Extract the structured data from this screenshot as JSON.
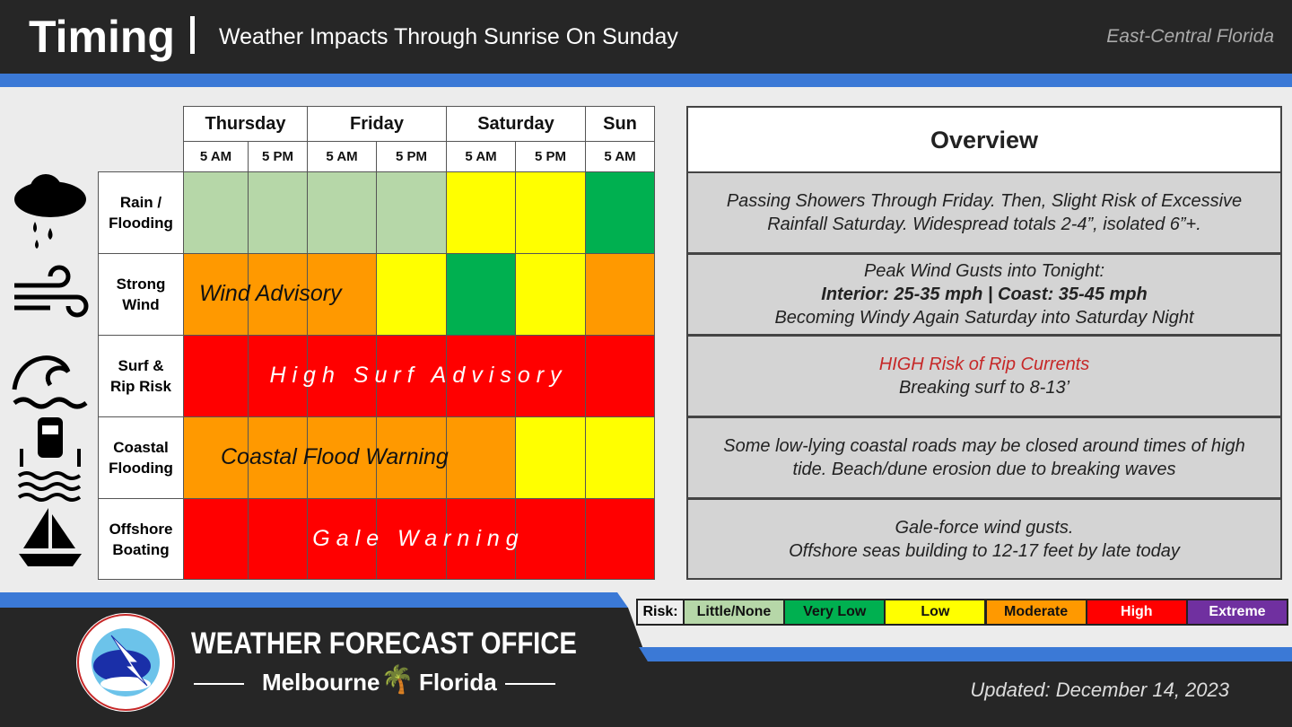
{
  "header": {
    "title": "Timing",
    "subtitle": "Weather Impacts Through Sunrise On Sunday",
    "region": "East-Central Florida"
  },
  "days": [
    {
      "label": "Thursday",
      "span": 2
    },
    {
      "label": "Friday",
      "span": 2
    },
    {
      "label": "Saturday",
      "span": 2
    },
    {
      "label": "Sun",
      "span": 1
    }
  ],
  "times": [
    "5 AM",
    "5 PM",
    "5 AM",
    "5 PM",
    "5 AM",
    "5 PM",
    "5 AM"
  ],
  "colors": {
    "little": "#b6d7a8",
    "verylow": "#00b050",
    "low": "#ffff00",
    "moderate": "#ff9900",
    "high": "#ff0000",
    "extreme": "#7030a0"
  },
  "rows": [
    {
      "label": "Rain / Flooding",
      "icon": "rain-cloud-icon",
      "risk": [
        "little",
        "little",
        "little",
        "little",
        "low",
        "low",
        "verylow"
      ],
      "overlay": "",
      "overview": [
        "Passing Showers Through Friday. Then, Slight Risk of Excessive",
        "Rainfall Saturday. Widespread totals 2-4”, isolated 6”+."
      ]
    },
    {
      "label": "Strong Wind",
      "icon": "wind-icon",
      "risk": [
        "moderate",
        "moderate",
        "moderate",
        "low",
        "verylow",
        "low",
        "moderate"
      ],
      "overlay": "Wind Advisory",
      "overview": [
        "Peak Wind Gusts into Tonight:",
        "Interior: 25-35 mph | Coast: 35-45 mph",
        "Becoming Windy Again Saturday into Saturday Night"
      ]
    },
    {
      "label": "Surf & Rip Risk",
      "icon": "wave-icon",
      "risk": [
        "high",
        "high",
        "high",
        "high",
        "high",
        "high",
        "high"
      ],
      "overlay": "High Surf Advisory",
      "overview": [
        "HIGH Risk of Rip Currents",
        "Breaking surf to 8-13’"
      ]
    },
    {
      "label": "Coastal Flooding",
      "icon": "flooded-car-icon",
      "risk": [
        "moderate",
        "moderate",
        "moderate",
        "moderate",
        "moderate",
        "low",
        "low"
      ],
      "overlay": "Coastal Flood Warning",
      "overview": [
        "Some low-lying coastal roads may be closed around times of high",
        "tide. Beach/dune erosion due to breaking waves"
      ]
    },
    {
      "label": "Offshore Boating",
      "icon": "sailboat-icon",
      "risk": [
        "high",
        "high",
        "high",
        "high",
        "high",
        "high",
        "high"
      ],
      "overlay": "Gale Warning",
      "overview": [
        "Gale-force wind gusts.",
        "Offshore seas building to 12-17 feet by late today"
      ]
    }
  ],
  "overview_title": "Overview",
  "legend": {
    "label": "Risk:",
    "items": [
      {
        "key": "little",
        "label": "Little/None"
      },
      {
        "key": "verylow",
        "label": "Very Low"
      },
      {
        "key": "low",
        "label": "Low"
      },
      {
        "key": "moderate",
        "label": "Moderate"
      },
      {
        "key": "high",
        "label": "High"
      },
      {
        "key": "extreme",
        "label": "Extreme"
      }
    ]
  },
  "footer": {
    "office": "WEATHER FORECAST OFFICE",
    "city": "Melbourne",
    "state": "Florida",
    "logo_text": "NATIONAL WEATHER SERVICE",
    "updated": "Updated: December 14, 2023"
  }
}
